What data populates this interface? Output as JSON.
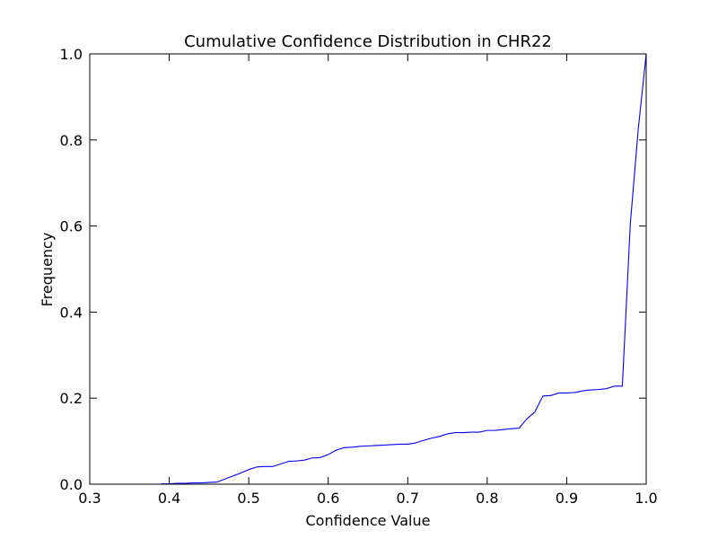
{
  "chart_data": {
    "type": "line",
    "title": "Cumulative Confidence Distribution in CHR22",
    "xlabel": "Confidence Value",
    "ylabel": "Frequency",
    "xlim": [
      0.3,
      1.0
    ],
    "ylim": [
      0.0,
      1.0
    ],
    "grid": false,
    "x_ticks": [
      0.3,
      0.4,
      0.5,
      0.6,
      0.7,
      0.8,
      0.9,
      1.0
    ],
    "x_tick_labels": [
      "0.3",
      "0.4",
      "0.5",
      "0.6",
      "0.7",
      "0.8",
      "0.9",
      "1.0"
    ],
    "y_ticks": [
      0.0,
      0.2,
      0.4,
      0.6,
      0.8,
      1.0
    ],
    "y_tick_labels": [
      "0.0",
      "0.2",
      "0.4",
      "0.6",
      "0.8",
      "1.0"
    ],
    "series": [
      {
        "color": "#0000ff",
        "x": [
          0.39,
          0.4,
          0.41,
          0.42,
          0.43,
          0.44,
          0.45,
          0.46,
          0.47,
          0.48,
          0.49,
          0.5,
          0.51,
          0.52,
          0.53,
          0.54,
          0.55,
          0.56,
          0.57,
          0.58,
          0.59,
          0.6,
          0.61,
          0.62,
          0.63,
          0.64,
          0.65,
          0.66,
          0.67,
          0.68,
          0.69,
          0.7,
          0.71,
          0.72,
          0.73,
          0.74,
          0.75,
          0.76,
          0.77,
          0.78,
          0.79,
          0.8,
          0.81,
          0.82,
          0.83,
          0.84,
          0.85,
          0.86,
          0.87,
          0.88,
          0.89,
          0.9,
          0.91,
          0.92,
          0.93,
          0.94,
          0.95,
          0.96,
          0.97,
          0.98,
          0.99,
          1.0
        ],
        "y": [
          0.001,
          0.001,
          0.002,
          0.002,
          0.003,
          0.003,
          0.004,
          0.005,
          0.012,
          0.019,
          0.026,
          0.034,
          0.04,
          0.041,
          0.041,
          0.047,
          0.053,
          0.054,
          0.056,
          0.061,
          0.062,
          0.069,
          0.079,
          0.085,
          0.086,
          0.088,
          0.089,
          0.09,
          0.091,
          0.092,
          0.093,
          0.093,
          0.096,
          0.102,
          0.107,
          0.111,
          0.117,
          0.12,
          0.12,
          0.121,
          0.121,
          0.125,
          0.125,
          0.127,
          0.129,
          0.13,
          0.152,
          0.168,
          0.205,
          0.206,
          0.212,
          0.212,
          0.213,
          0.217,
          0.219,
          0.22,
          0.222,
          0.228,
          0.228,
          0.605,
          0.825,
          1.0
        ]
      }
    ]
  }
}
